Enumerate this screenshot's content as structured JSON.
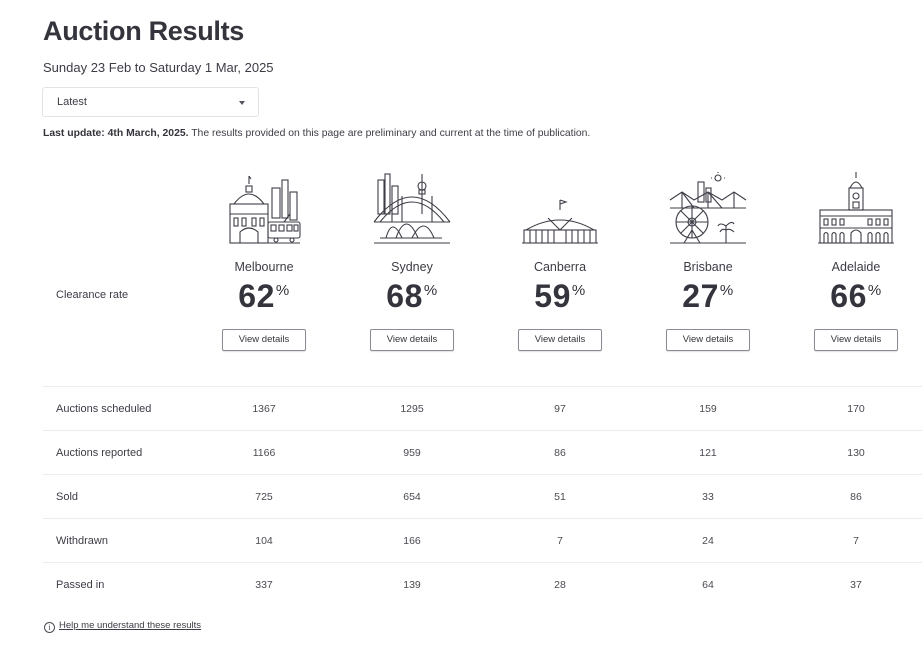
{
  "page": {
    "title": "Auction Results",
    "subtitle": "Sunday 23 Feb to Saturday 1 Mar, 2025"
  },
  "filter": {
    "selected": "Latest"
  },
  "update": {
    "bold": "Last update: 4th March, 2025.",
    "text": " The results provided on this page are preliminary and current at the time of publication."
  },
  "clearance_label": "Clearance rate",
  "view_details_label": "View details",
  "percent_sign": "%",
  "cities": [
    {
      "name": "Melbourne",
      "icon": "melbourne-flinders-street-icon",
      "clearance": "62"
    },
    {
      "name": "Sydney",
      "icon": "sydney-opera-house-icon",
      "clearance": "68"
    },
    {
      "name": "Canberra",
      "icon": "canberra-parliament-house-icon",
      "clearance": "59"
    },
    {
      "name": "Brisbane",
      "icon": "brisbane-story-bridge-icon",
      "clearance": "27"
    },
    {
      "name": "Adelaide",
      "icon": "adelaide-town-hall-icon",
      "clearance": "66"
    }
  ],
  "table": {
    "rows": [
      {
        "label": "Auctions scheduled",
        "values": [
          "1367",
          "1295",
          "97",
          "159",
          "170"
        ]
      },
      {
        "label": "Auctions reported",
        "values": [
          "1166",
          "959",
          "86",
          "121",
          "130"
        ]
      },
      {
        "label": "Sold",
        "values": [
          "725",
          "654",
          "51",
          "33",
          "86"
        ]
      },
      {
        "label": "Withdrawn",
        "values": [
          "104",
          "166",
          "7",
          "24",
          "7"
        ]
      },
      {
        "label": "Passed in",
        "values": [
          "337",
          "139",
          "28",
          "64",
          "37"
        ]
      }
    ]
  },
  "help": {
    "icon_glyph": "i",
    "link": "Help me understand these results"
  }
}
